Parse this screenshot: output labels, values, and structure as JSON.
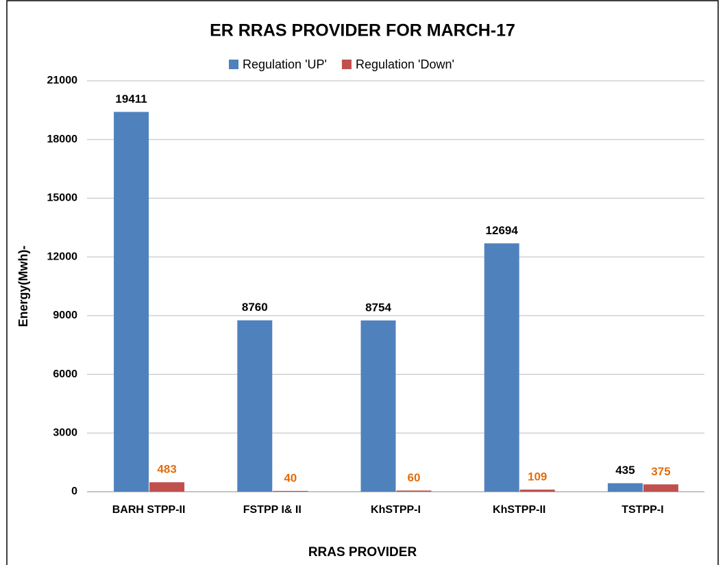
{
  "chart_data": {
    "type": "bar",
    "title": "ER RRAS PROVIDER FOR MARCH-17",
    "x_label": "RRAS PROVIDER",
    "y_label": "Energy(Mwh)-",
    "categories": [
      "BARH STPP-II",
      "FSTPP I& II",
      "KhSTPP-I",
      "KhSTPP-II",
      "TSTPP-I"
    ],
    "series": [
      {
        "name": "Regulation 'UP'",
        "color": "#4f81bd",
        "label_color": "#000000",
        "values": [
          19411,
          8760,
          8754,
          12694,
          435
        ]
      },
      {
        "name": "Regulation 'Down'",
        "color": "#c0504d",
        "label_color": "#e46c0a",
        "values": [
          483,
          40,
          60,
          109,
          375
        ]
      }
    ],
    "ylim": [
      0,
      21000
    ],
    "yticks": [
      0,
      3000,
      6000,
      9000,
      12000,
      15000,
      18000,
      21000
    ],
    "grid": true,
    "legend": "top"
  }
}
